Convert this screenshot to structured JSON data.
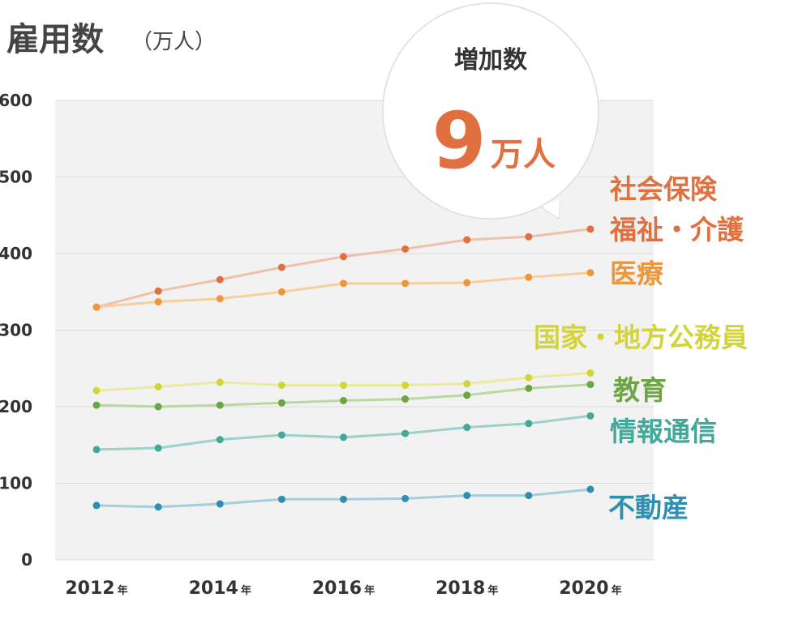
{
  "header": {
    "title": "雇用数",
    "unit": "（万人）"
  },
  "callout": {
    "title": "増加数",
    "number": "9",
    "unit": "万人",
    "color": "#e07040"
  },
  "chart_data": {
    "type": "line",
    "title": "雇用数",
    "ylabel": "（万人）",
    "ylim": [
      0,
      600
    ],
    "yticks": [
      0,
      100,
      200,
      300,
      400,
      500,
      600
    ],
    "x": [
      2012,
      2013,
      2014,
      2015,
      2016,
      2017,
      2018,
      2019,
      2020
    ],
    "xtick_labels": [
      {
        "year": "2012",
        "unit": "年"
      },
      {
        "year": "2014",
        "unit": "年"
      },
      {
        "year": "2016",
        "unit": "年"
      },
      {
        "year": "2018",
        "unit": "年"
      },
      {
        "year": "2020",
        "unit": "年"
      }
    ],
    "grid": true,
    "series": [
      {
        "name": [
          "社会保険",
          "福祉・介護"
        ],
        "color": "#e07040",
        "line_color": "#efc0aa",
        "values": [
          330,
          351,
          366,
          382,
          396,
          406,
          418,
          422,
          432
        ]
      },
      {
        "name": [
          "医療"
        ],
        "color": "#f0963a",
        "line_color": "#f6cfa0",
        "values": [
          330,
          337,
          341,
          350,
          361,
          361,
          362,
          369,
          375
        ]
      },
      {
        "name": [
          "国家・地方公務員"
        ],
        "color": "#d2d43a",
        "line_color": "#eaeba0",
        "values": [
          221,
          226,
          232,
          228,
          228,
          228,
          230,
          238,
          244
        ]
      },
      {
        "name": [
          "教育"
        ],
        "color": "#6ca544",
        "line_color": "#b9d8a2",
        "values": [
          202,
          200,
          202,
          205,
          208,
          210,
          215,
          224,
          229
        ]
      },
      {
        "name": [
          "情報通信"
        ],
        "color": "#42a89a",
        "line_color": "#9ed2c8",
        "values": [
          144,
          146,
          157,
          163,
          160,
          165,
          173,
          178,
          188
        ]
      },
      {
        "name": [
          "不動産"
        ],
        "color": "#2e8fb0",
        "line_color": "#a3cfdc",
        "values": [
          71,
          69,
          73,
          79,
          79,
          80,
          84,
          84,
          92
        ]
      }
    ]
  }
}
